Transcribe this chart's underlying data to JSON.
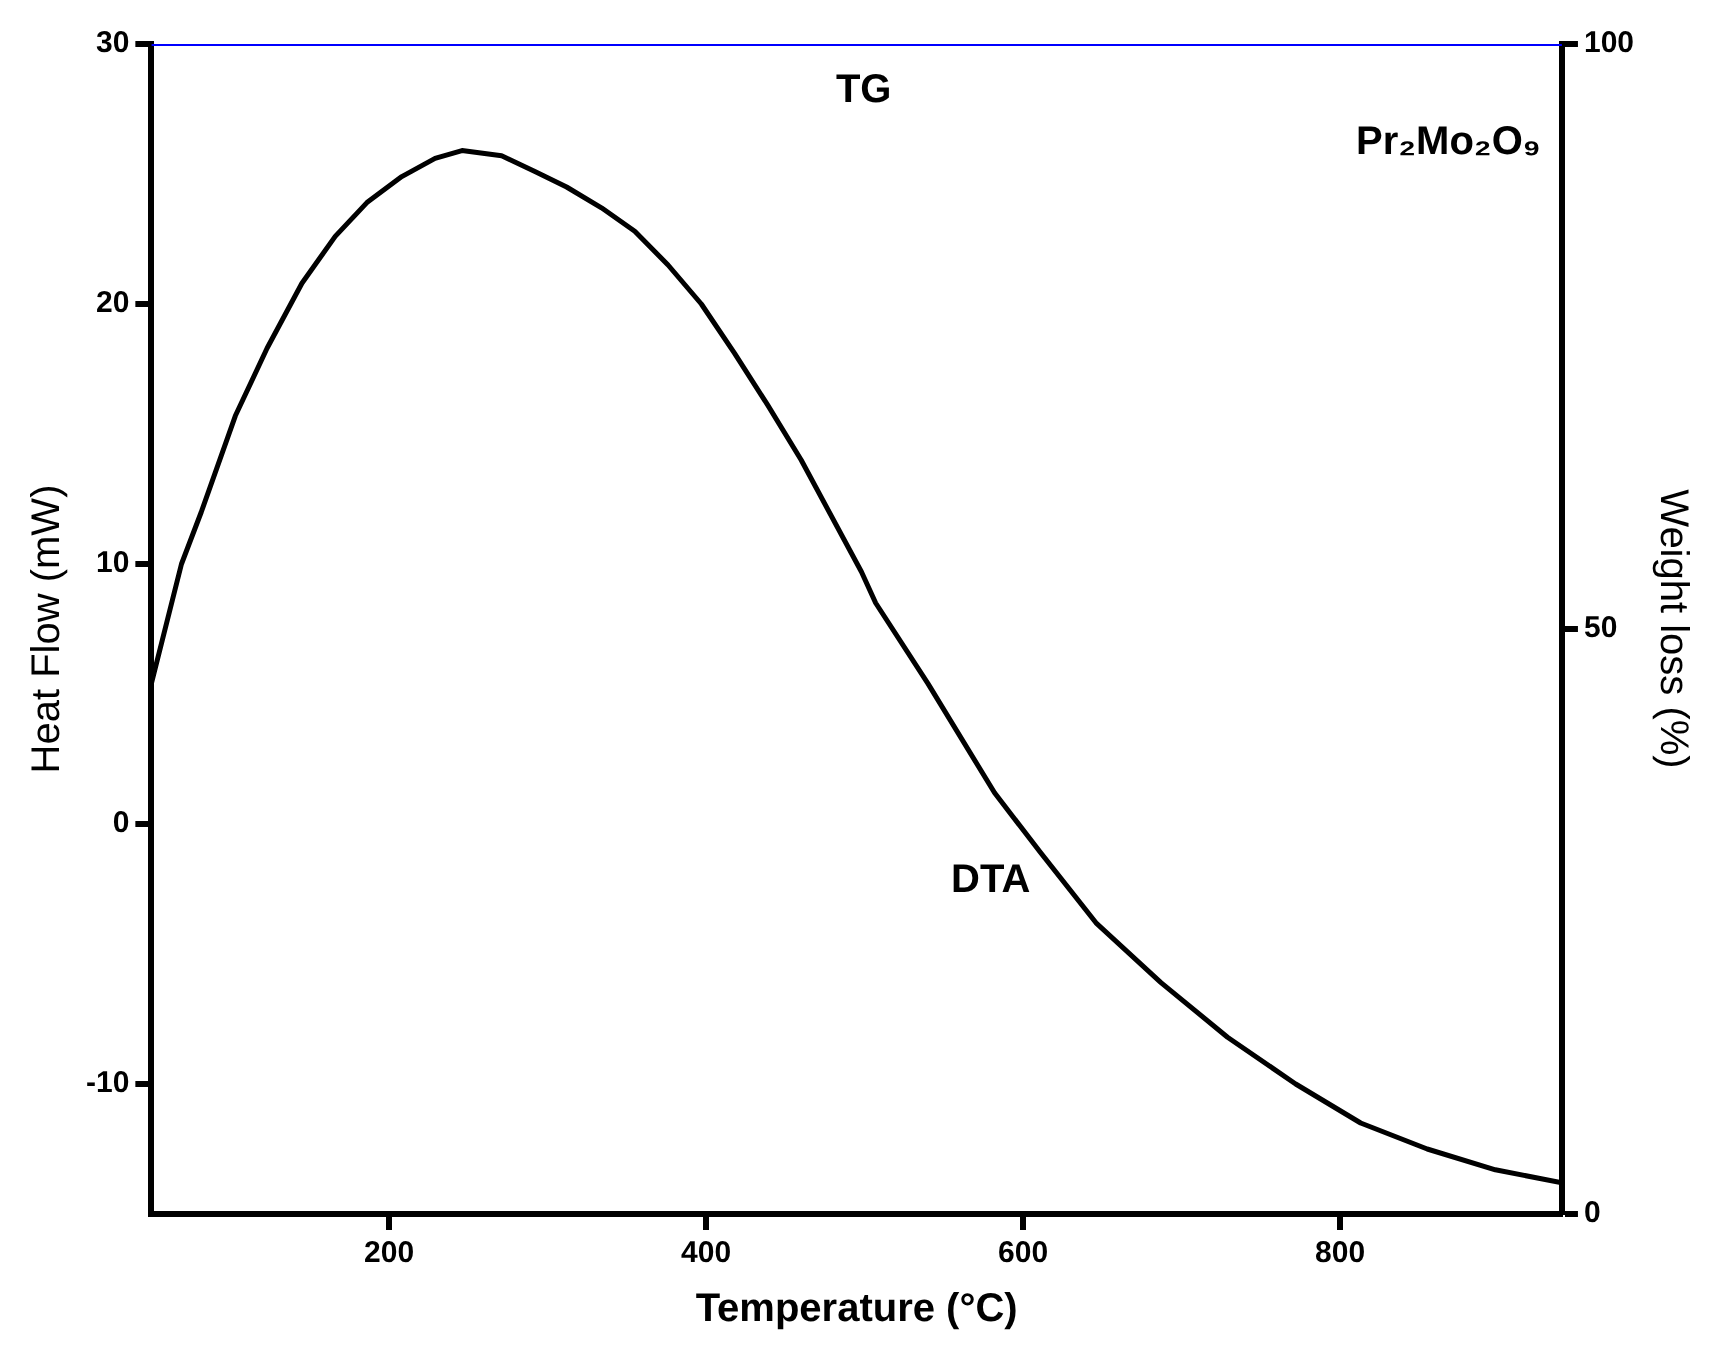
{
  "chart_data": {
    "type": "line",
    "xlabel": "Temperature (°C)",
    "ylabel": "Heat Flow (mW)",
    "y2label": "Weight loss (%)",
    "xlim": [
      50,
      940
    ],
    "xticks": [
      200,
      400,
      600,
      800
    ],
    "ylim": [
      -15,
      30
    ],
    "yticks": [
      -10,
      0,
      10,
      20,
      30
    ],
    "y2lim": [
      0,
      100
    ],
    "y2ticks": [
      0,
      50,
      100
    ],
    "grid": false,
    "legend": false,
    "marker": "none",
    "line_style": "solid",
    "series": [
      {
        "color": "#000000",
        "x": [
          50,
          69,
          81.5,
          103,
          123,
          145,
          166,
          186,
          208,
          229,
          246,
          271,
          292,
          312,
          334,
          355,
          376,
          397,
          418,
          439,
          460,
          498,
          507,
          540,
          582,
          611,
          646,
          687,
          729,
          772,
          813,
          855,
          898,
          940
        ],
        "values": [
          5.4,
          10.0,
          12.0,
          15.7,
          18.3,
          20.8,
          22.6,
          23.9,
          24.9,
          25.6,
          25.9,
          25.7,
          25.1,
          24.5,
          23.7,
          22.8,
          21.5,
          20.0,
          18.1,
          16.1,
          14.0,
          9.7,
          8.5,
          5.4,
          1.2,
          -1.1,
          -3.8,
          -6.1,
          -8.2,
          -10.0,
          -11.5,
          -12.5,
          -13.3,
          -13.8
        ]
      },
      {
        "color": "#0000ff",
        "axis": "y2",
        "x": [
          50,
          940
        ],
        "values": [
          100,
          100
        ]
      }
    ],
    "annotations": [
      "TG",
      "DTA",
      "Pr₂Mo₂O₉"
    ]
  }
}
